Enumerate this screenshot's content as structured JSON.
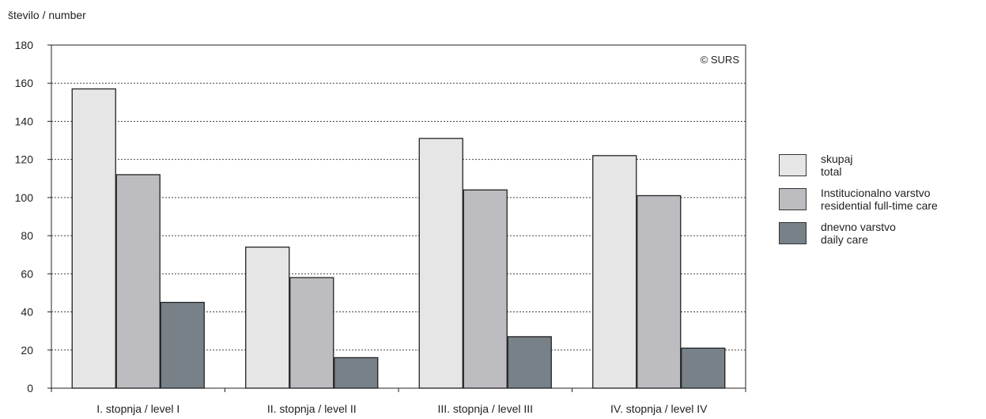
{
  "chart_data": {
    "type": "bar",
    "ylabel": "število / number",
    "copyright": "© SURS",
    "ylim": [
      0,
      180
    ],
    "yticks": [
      0,
      20,
      40,
      60,
      80,
      100,
      120,
      140,
      160,
      180
    ],
    "categories": [
      "I. stopnja / level I",
      "II. stopnja / level II",
      "III. stopnja / level III",
      "IV. stopnja / level IV"
    ],
    "series": [
      {
        "name": "skupaj\ntotal",
        "color": "#e6e6e6",
        "values": [
          157,
          74,
          131,
          122
        ]
      },
      {
        "name": "Institucionalno varstvo\nresidential full-time care",
        "color": "#bdbdc1",
        "values": [
          112,
          58,
          104,
          101
        ]
      },
      {
        "name": "dnevno varstvo\ndaily care",
        "color": "#788188",
        "values": [
          45,
          16,
          27,
          21
        ]
      }
    ],
    "grid": true,
    "legend_position": "right"
  }
}
